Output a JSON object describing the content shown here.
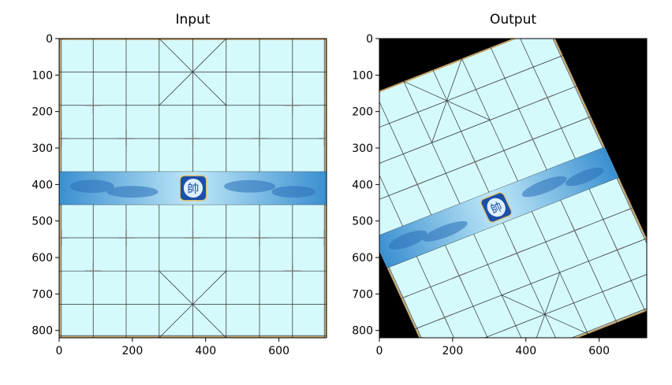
{
  "figure": {
    "panels": [
      {
        "title": "Input",
        "x_ticks": [
          "0",
          "200",
          "400",
          "600"
        ],
        "y_ticks": [
          "0",
          "100",
          "200",
          "300",
          "400",
          "500",
          "600",
          "700",
          "800"
        ],
        "image": "chinese-chess-board",
        "transform": "none"
      },
      {
        "title": "Output",
        "x_ticks": [
          "0",
          "200",
          "400",
          "600"
        ],
        "y_ticks": [
          "0",
          "100",
          "200",
          "300",
          "400",
          "500",
          "600",
          "700",
          "800"
        ],
        "image": "chinese-chess-board",
        "transform": "rotated-and-sheared"
      }
    ],
    "colors": {
      "board": "#d4fafc",
      "grid_line": "#333333",
      "river": "#3a8fd0",
      "river_light": "#bfe8f8",
      "badge": "#1b4fa8",
      "background_fill": "#000000",
      "border": "#c8a060"
    },
    "badge_text": "帥"
  },
  "chart_data": [
    {
      "type": "image",
      "title": "Input",
      "xlim": [
        0,
        730
      ],
      "ylim": [
        820,
        0
      ],
      "x_ticks": [
        0,
        200,
        400,
        600
      ],
      "y_ticks": [
        0,
        100,
        200,
        300,
        400,
        500,
        600,
        700,
        800
      ]
    },
    {
      "type": "image",
      "title": "Output",
      "xlim": [
        0,
        730
      ],
      "ylim": [
        820,
        0
      ],
      "x_ticks": [
        0,
        200,
        400,
        600
      ],
      "y_ticks": [
        0,
        100,
        200,
        300,
        400,
        500,
        600,
        700,
        800
      ]
    }
  ]
}
